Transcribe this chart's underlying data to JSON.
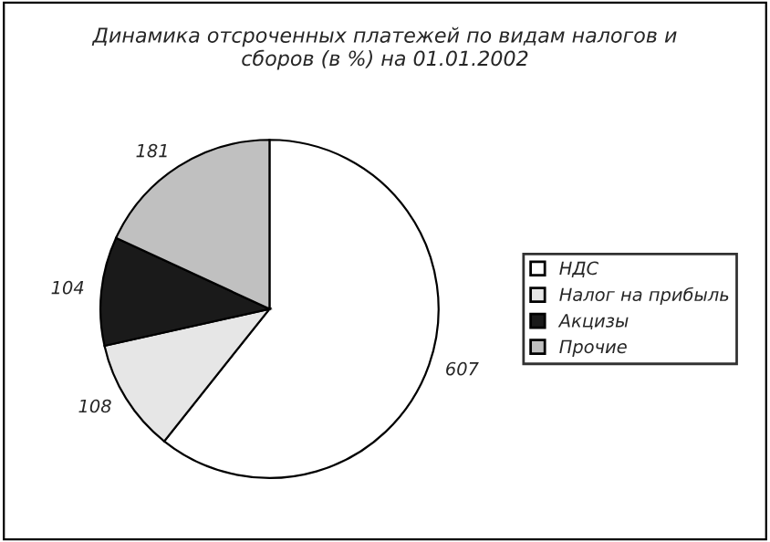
{
  "chart_data": {
    "type": "pie",
    "title": "Динамика отсроченных платежей по видам налогов и\nсборов (в %) на 01.01.2002",
    "categories": [
      "НДС",
      "Налог на прибыль",
      "Акцизы",
      "Прочие"
    ],
    "values": [
      607,
      108,
      104,
      181
    ],
    "colors": [
      "#ffffff",
      "#e6e6e6",
      "#1a1a1a",
      "#c0c0c0"
    ],
    "data_labels": true,
    "legend": "right"
  }
}
